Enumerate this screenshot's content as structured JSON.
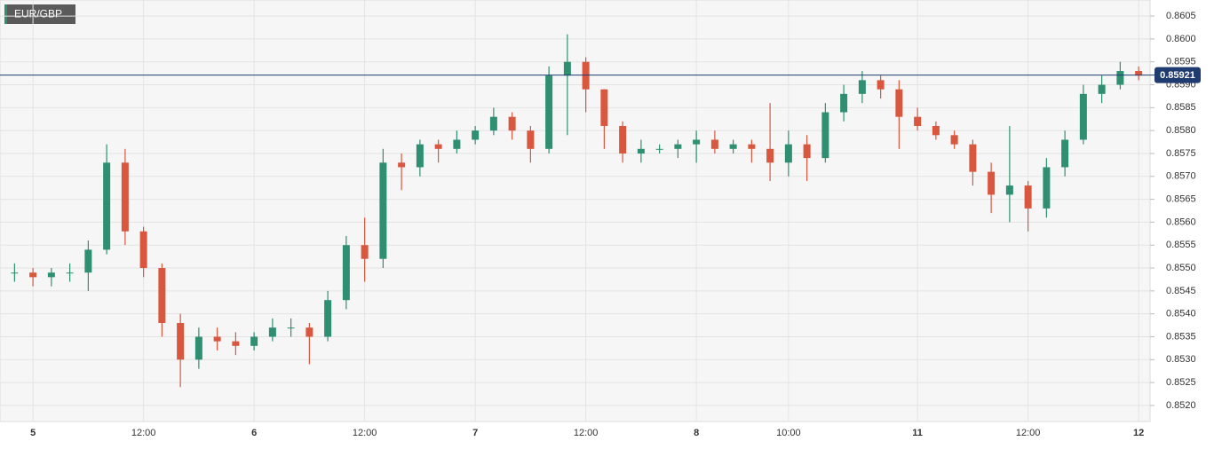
{
  "chart_data": {
    "type": "candlestick",
    "title": "EUR/GBP",
    "categories": [
      null,
      "5",
      null,
      null,
      null,
      null,
      null,
      "12:00",
      null,
      null,
      null,
      null,
      null,
      "6",
      null,
      null,
      null,
      null,
      null,
      "12:00",
      null,
      null,
      null,
      null,
      null,
      "7",
      null,
      null,
      null,
      null,
      null,
      "12:00",
      null,
      null,
      null,
      null,
      null,
      "8",
      null,
      null,
      null,
      null,
      "10:00",
      null,
      null,
      null,
      null,
      null,
      null,
      "11",
      null,
      null,
      null,
      null,
      null,
      "12:00",
      null,
      null,
      null,
      null,
      null,
      "12"
    ],
    "open": [
      0.8549,
      0.8549,
      0.8548,
      0.8549,
      0.8549,
      0.8554,
      0.8573,
      0.8558,
      0.855,
      0.8538,
      0.853,
      0.8535,
      0.8534,
      0.8533,
      0.8535,
      0.8537,
      0.8537,
      0.8535,
      0.8543,
      0.8555,
      0.8552,
      0.8573,
      0.8572,
      0.8577,
      0.8576,
      0.8578,
      0.858,
      0.8583,
      0.858,
      0.8576,
      0.8592,
      0.8595,
      0.8589,
      0.8581,
      0.8575,
      0.8576,
      0.8576,
      0.8577,
      0.8578,
      0.8576,
      0.8577,
      0.8576,
      0.8573,
      0.8577,
      0.8574,
      0.8584,
      0.8588,
      0.8591,
      0.8589,
      0.8583,
      0.8581,
      0.8579,
      0.8577,
      0.8571,
      0.8566,
      0.8568,
      0.8563,
      0.8572,
      0.8578,
      0.8588,
      0.859,
      0.8593
    ],
    "high": [
      0.8551,
      0.855,
      0.855,
      0.8551,
      0.8556,
      0.8577,
      0.8576,
      0.8559,
      0.8551,
      0.854,
      0.8537,
      0.8537,
      0.8536,
      0.8536,
      0.8539,
      0.8539,
      0.8538,
      0.8545,
      0.8557,
      0.8561,
      0.8576,
      0.8575,
      0.8578,
      0.8578,
      0.858,
      0.8581,
      0.8585,
      0.8584,
      0.8581,
      0.8594,
      0.8601,
      0.8596,
      0.8589,
      0.8582,
      0.8578,
      0.8577,
      0.8578,
      0.858,
      0.858,
      0.8578,
      0.8578,
      0.8586,
      0.858,
      0.8579,
      0.8586,
      0.859,
      0.8593,
      0.8592,
      0.8591,
      0.8585,
      0.8582,
      0.858,
      0.8578,
      0.8573,
      0.8581,
      0.8569,
      0.8574,
      0.858,
      0.859,
      0.8592,
      0.8595,
      0.8594
    ],
    "low": [
      0.8547,
      0.8546,
      0.8546,
      0.8547,
      0.8545,
      0.8553,
      0.8555,
      0.8548,
      0.8535,
      0.8524,
      0.8528,
      0.8532,
      0.8531,
      0.8532,
      0.8534,
      0.8535,
      0.8529,
      0.8534,
      0.8541,
      0.8547,
      0.855,
      0.8567,
      0.857,
      0.8573,
      0.8575,
      0.8577,
      0.8579,
      0.8578,
      0.8573,
      0.8575,
      0.8579,
      0.8584,
      0.8576,
      0.8573,
      0.8573,
      0.8575,
      0.8574,
      0.8573,
      0.8575,
      0.8575,
      0.8573,
      0.8569,
      0.857,
      0.8569,
      0.8573,
      0.8582,
      0.8586,
      0.8587,
      0.8576,
      0.858,
      0.8578,
      0.8576,
      0.8568,
      0.8562,
      0.856,
      0.8558,
      0.8561,
      0.857,
      0.8577,
      0.8586,
      0.8589,
      0.8591
    ],
    "close": [
      0.8549,
      0.8548,
      0.8549,
      0.8549,
      0.8554,
      0.8573,
      0.8558,
      0.855,
      0.8538,
      0.853,
      0.8535,
      0.8534,
      0.8533,
      0.8535,
      0.8537,
      0.8537,
      0.8535,
      0.8543,
      0.8555,
      0.8552,
      0.8573,
      0.8572,
      0.8577,
      0.8576,
      0.8578,
      0.858,
      0.8583,
      0.858,
      0.8576,
      0.8592,
      0.8595,
      0.8589,
      0.8581,
      0.8575,
      0.8576,
      0.8576,
      0.8577,
      0.8578,
      0.8576,
      0.8577,
      0.8576,
      0.8573,
      0.8577,
      0.8574,
      0.8584,
      0.8588,
      0.8591,
      0.8589,
      0.8583,
      0.8581,
      0.8579,
      0.8577,
      0.8571,
      0.8566,
      0.8568,
      0.8563,
      0.8572,
      0.8578,
      0.8588,
      0.859,
      0.8593,
      0.8592
    ],
    "up_color": "#2f8f72",
    "down_color": "#d9573f",
    "current_price": 0.85921,
    "current_color": "#1f3b70",
    "ylim": [
      0.85165,
      0.86085
    ],
    "yticks": [
      {
        "value": 0.852,
        "label": "0.8520"
      },
      0.8525,
      {
        "value": 0.853,
        "label": "0.8530"
      },
      0.8535,
      {
        "value": 0.854,
        "label": "0.8540"
      },
      0.8545,
      {
        "value": 0.855,
        "label": "0.8550"
      },
      0.8555,
      {
        "value": 0.856,
        "label": "0.8560"
      },
      0.8565,
      {
        "value": 0.857,
        "label": "0.8570"
      },
      0.8575,
      {
        "value": 0.858,
        "label": "0.8580"
      },
      0.8585,
      {
        "value": 0.859,
        "label": "0.8590"
      },
      0.8595,
      {
        "value": 0.86,
        "label": "0.8600"
      },
      0.8605
    ],
    "grid": true
  }
}
